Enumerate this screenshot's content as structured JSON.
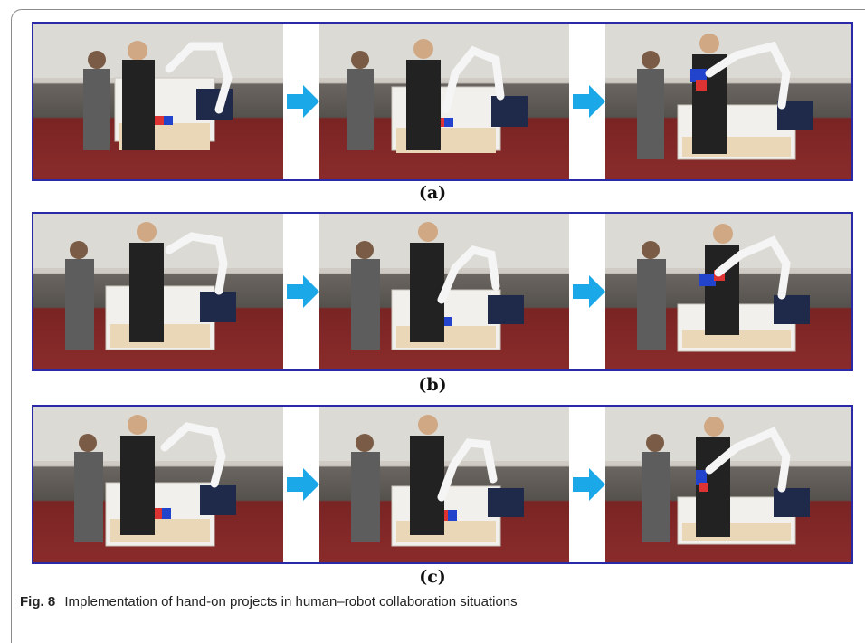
{
  "figure": {
    "rows": [
      {
        "label": "(a)"
      },
      {
        "label": "(b)"
      },
      {
        "label": "(c)"
      }
    ],
    "caption": {
      "number": "Fig. 8",
      "text": "Implementation of hand-on projects in human–robot collaboration situations"
    },
    "colors": {
      "border": "#2a2aa8",
      "arrow": "#1aa8e8"
    }
  }
}
